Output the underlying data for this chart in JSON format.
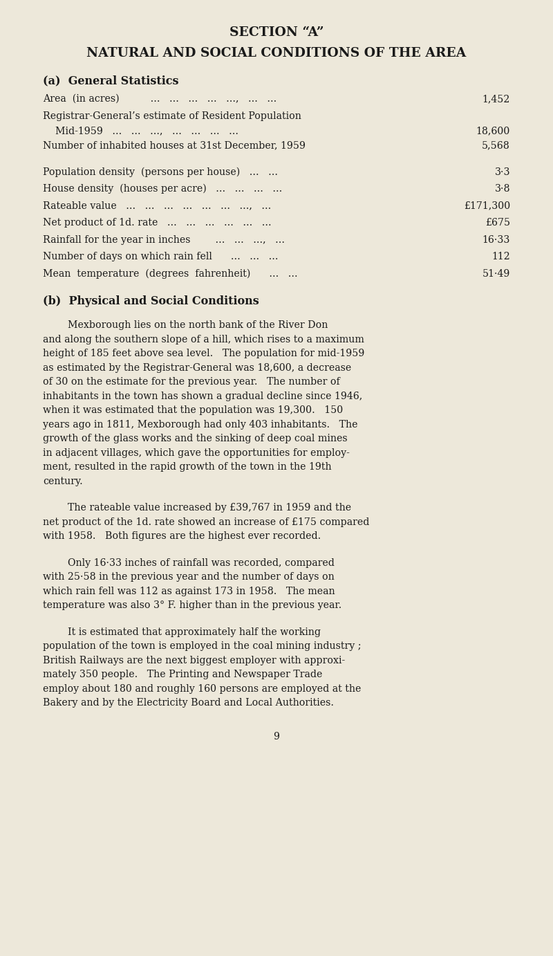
{
  "bg_color": "#ede8da",
  "text_color": "#1a1a1a",
  "title1": "SECTION “A”",
  "title2": "NATURAL AND SOCIAL CONDITIONS OF THE AREA",
  "section_a_heading": "(a)  General Statistics",
  "stats": [
    {
      "label": "Area  (in acres)          ...   ...   ...   ...   ...,   ...   ...",
      "value": "1,452",
      "gap_after": false
    },
    {
      "label": "Registrar-General’s estimate of Resident Population",
      "value": "",
      "gap_after": false
    },
    {
      "label": "    Mid-1959   ...   ...   ...,   ...   ...   ...   ...",
      "value": "18,600",
      "gap_after": false
    },
    {
      "label": "Number of inhabited houses at 31st December, 1959",
      "value": "5,568",
      "gap_after": true
    },
    {
      "label": "Population density  (persons per house)   ...   ...",
      "value": "3·3",
      "gap_after": false
    },
    {
      "label": "House density  (houses per acre)   ...   ...   ...   ...",
      "value": "3·8",
      "gap_after": false
    },
    {
      "label": "Rateable value   ...   ...   ...   ...   ...   ...   ...,   ...",
      "value": "£171,300",
      "gap_after": false
    },
    {
      "label": "Net product of 1d. rate   ...   ...   ...   ...   ...   ...",
      "value": "£675",
      "gap_after": false
    },
    {
      "label": "Rainfall for the year in inches        ...   ...   ...,   ...",
      "value": "16·33",
      "gap_after": false
    },
    {
      "label": "Number of days on which rain fell      ...   ...   ...",
      "value": "112",
      "gap_after": false
    },
    {
      "label": "Mean  temperature  (degrees  fahrenheit)      ...   ...",
      "value": "51·49",
      "gap_after": false
    }
  ],
  "section_b_heading": "(b)  Physical and Social Conditions",
  "para1_lines": [
    "        Mexborough lies on the north bank of the River Don",
    "and along the southern slope of a hill, which rises to a maximum",
    "height of 185 feet above sea level.   The population for mid-1959",
    "as estimated by the Registrar-General was 18,600, a decrease",
    "of 30 on the estimate for the previous year.   The number of",
    "inhabitants in the town has shown a gradual decline since 1946,",
    "when it was estimated that the population was 19,300.   150",
    "years ago in 1811, Mexborough had only 403 inhabitants.   The",
    "growth of the glass works and the sinking of deep coal mines",
    "in adjacent villages, which gave the opportunities for employ-",
    "ment, resulted in the rapid growth of the town in the 19th",
    "century."
  ],
  "para2_lines": [
    "        The rateable value increased by £39,767 in 1959 and the",
    "net product of the 1d. rate showed an increase of £175 compared",
    "with 1958.   Both figures are the highest ever recorded."
  ],
  "para3_lines": [
    "        Only 16·33 inches of rainfall was recorded, compared",
    "with 25·58 in the previous year and the number of days on",
    "which rain fell was 112 as against 173 in 1958.   The mean",
    "temperature was also 3° F. higher than in the previous year."
  ],
  "para4_lines": [
    "        It is estimated that approximately half the working",
    "population of the town is employed in the coal mining industry ;",
    "British Railways are the next biggest employer with approxi-",
    "mately 350 people.   The Printing and Newspaper Trade",
    "employ about 180 and roughly 160 persons are employed at the",
    "Bakery and by the Electricity Board and Local Authorities."
  ],
  "page_number": "9",
  "font_size_title1": 13.5,
  "font_size_title2": 13.5,
  "font_size_heading": 11.5,
  "font_size_stats": 10.2,
  "font_size_body": 10.2
}
